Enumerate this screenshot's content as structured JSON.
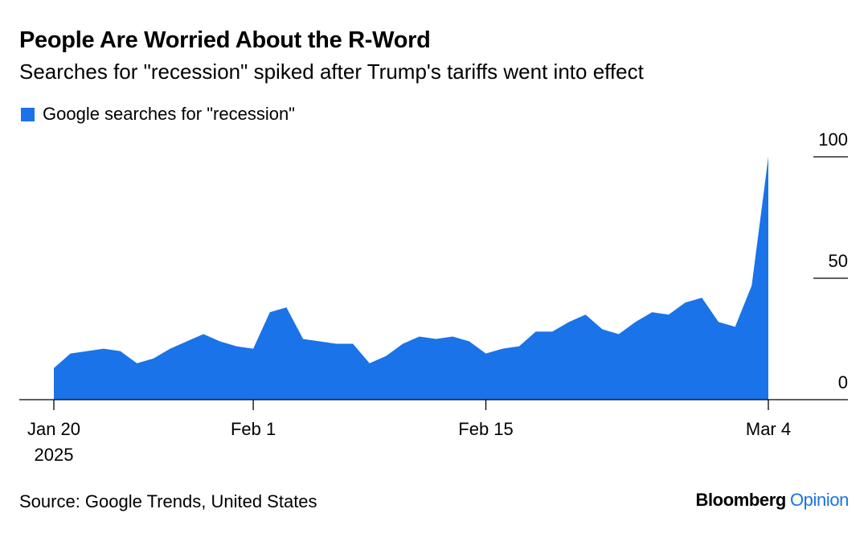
{
  "title": "People Are Worried About the R-Word",
  "subtitle": "Searches for \"recession\" spiked after Trump's tariffs went into effect",
  "legend": {
    "label": "Google searches for \"recession\"",
    "color": "#1a73e8"
  },
  "source": "Source: Google Trends, United States",
  "logo": {
    "brand": "Bloomberg",
    "opinion": "Opinion",
    "opinion_color": "#1a73e8"
  },
  "chart_data": {
    "type": "area",
    "series": [
      {
        "name": "Google searches for \"recession\"",
        "color": "#1a73e8",
        "x": [
          "2025-01-20",
          "2025-01-21",
          "2025-01-22",
          "2025-01-23",
          "2025-01-24",
          "2025-01-25",
          "2025-01-26",
          "2025-01-27",
          "2025-01-28",
          "2025-01-29",
          "2025-01-30",
          "2025-01-31",
          "2025-02-01",
          "2025-02-02",
          "2025-02-03",
          "2025-02-04",
          "2025-02-05",
          "2025-02-06",
          "2025-02-07",
          "2025-02-08",
          "2025-02-09",
          "2025-02-10",
          "2025-02-11",
          "2025-02-12",
          "2025-02-13",
          "2025-02-14",
          "2025-02-15",
          "2025-02-16",
          "2025-02-17",
          "2025-02-18",
          "2025-02-19",
          "2025-02-20",
          "2025-02-21",
          "2025-02-22",
          "2025-02-23",
          "2025-02-24",
          "2025-02-25",
          "2025-02-26",
          "2025-02-27",
          "2025-02-28",
          "2025-03-01",
          "2025-03-02",
          "2025-03-03",
          "2025-03-04"
        ],
        "values": [
          13,
          19,
          20,
          21,
          20,
          15,
          17,
          21,
          24,
          27,
          24,
          22,
          21,
          36,
          38,
          25,
          24,
          23,
          23,
          15,
          18,
          23,
          26,
          25,
          26,
          24,
          19,
          21,
          22,
          28,
          28,
          32,
          35,
          29,
          27,
          32,
          36,
          35,
          40,
          42,
          32,
          30,
          47,
          100
        ]
      }
    ],
    "x_ticks": [
      {
        "date": "2025-01-20",
        "label": "Jan 20",
        "sublabel": "2025"
      },
      {
        "date": "2025-02-01",
        "label": "Feb 1"
      },
      {
        "date": "2025-02-15",
        "label": "Feb 15"
      },
      {
        "date": "2025-03-04",
        "label": "Mar 4"
      }
    ],
    "y_ticks": [
      {
        "value": 100,
        "label": "100"
      },
      {
        "value": 50,
        "label": "50"
      },
      {
        "value": 0,
        "label": "0"
      }
    ],
    "ylim": [
      0,
      100
    ],
    "grid": false,
    "legend_position": "top-left"
  }
}
